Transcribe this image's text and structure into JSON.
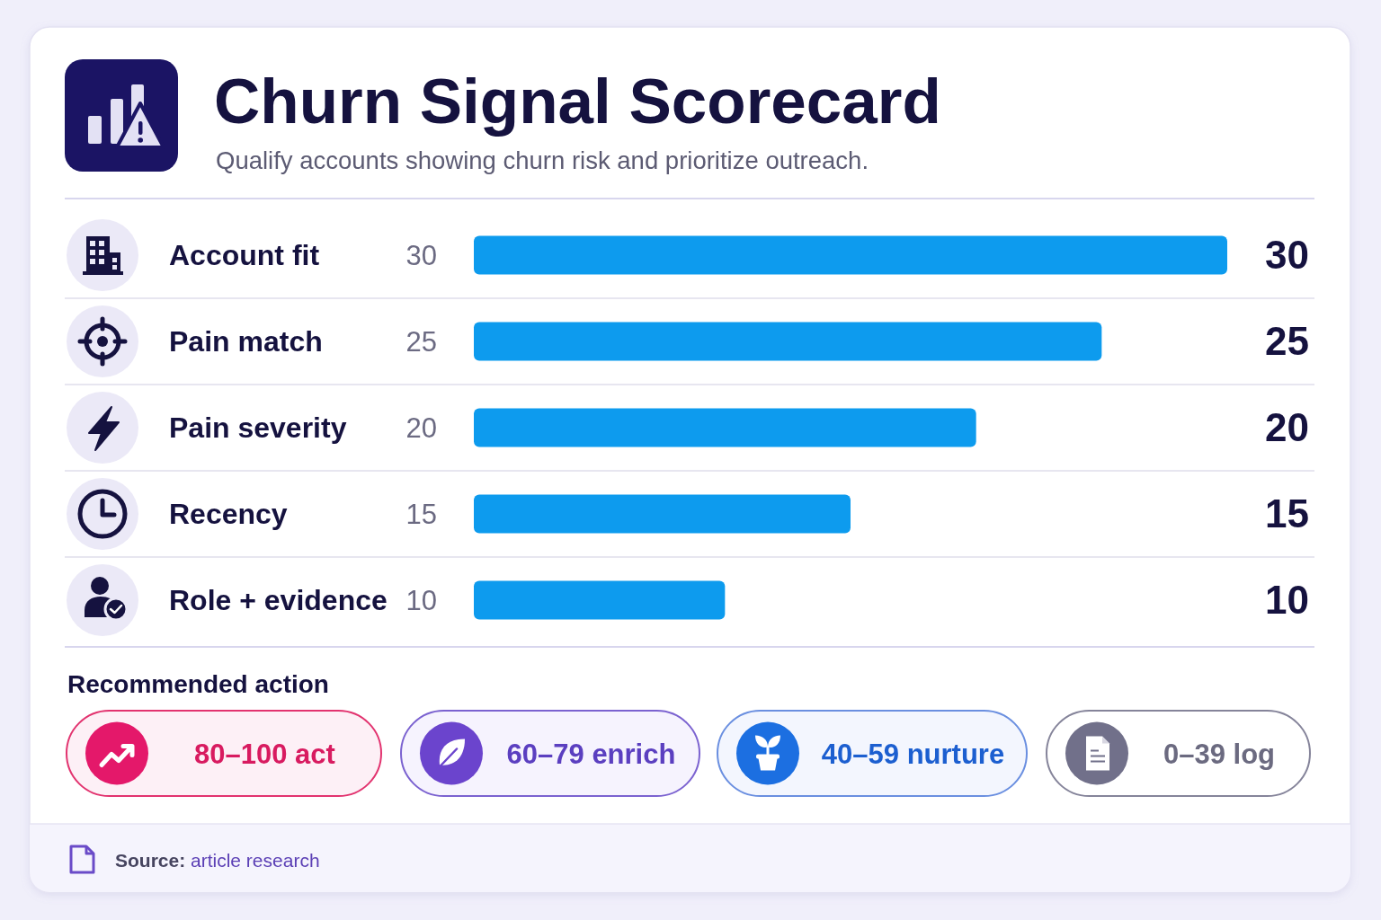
{
  "chart_data": {
    "type": "bar",
    "orientation": "horizontal",
    "title": "Churn Signal Scorecard",
    "subtitle": "Qualify accounts showing churn risk and prioritize outreach.",
    "categories": [
      "Account fit",
      "Pain match",
      "Pain severity",
      "Recency",
      "Role + evidence"
    ],
    "values": [
      30,
      25,
      20,
      15,
      10
    ],
    "color": "#0d9bee",
    "xlim": [
      0,
      30
    ],
    "data_labels": true,
    "annotations": [
      "30",
      "25",
      "20",
      "15",
      "10",
      "Recommended action",
      "80–100 act",
      "60–79 enrich",
      "40–59 nurture",
      "0–39 log",
      "Source: article research"
    ]
  }
}
